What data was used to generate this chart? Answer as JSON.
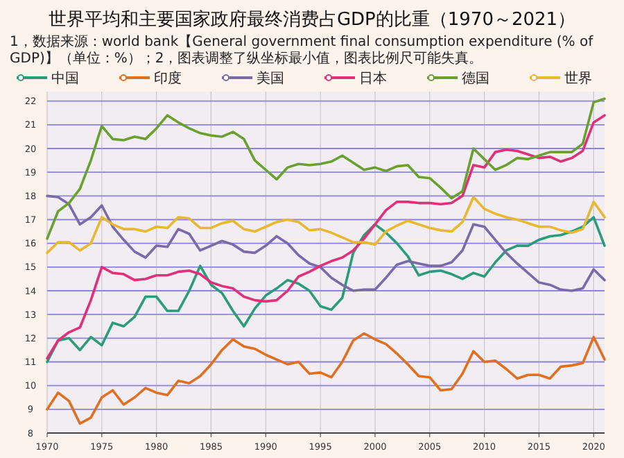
{
  "chart_data": {
    "type": "line",
    "title": "世界平均和主要国家政府最终消费占GDP的比重（1970～2021）",
    "subtitle": "1，数据来源：world bank【General government final consumption expenditure (% of GDP)】（单位：%）；2，图表调整了纵坐标最小值，图表比例尺可能失真。",
    "x": [
      1970,
      1971,
      1972,
      1973,
      1974,
      1975,
      1976,
      1977,
      1978,
      1979,
      1980,
      1981,
      1982,
      1983,
      1984,
      1985,
      1986,
      1987,
      1988,
      1989,
      1990,
      1991,
      1992,
      1993,
      1994,
      1995,
      1996,
      1997,
      1998,
      1999,
      2000,
      2001,
      2002,
      2003,
      2004,
      2005,
      2006,
      2007,
      2008,
      2009,
      2010,
      2011,
      2012,
      2013,
      2014,
      2015,
      2016,
      2017,
      2018,
      2019,
      2020,
      2021
    ],
    "series": [
      {
        "name": "中国",
        "color": "#2a9d78",
        "values": [
          11.0,
          11.9,
          12.0,
          11.5,
          12.05,
          11.7,
          12.65,
          12.5,
          12.9,
          13.75,
          13.75,
          13.15,
          13.15,
          14.0,
          15.05,
          14.25,
          13.9,
          13.15,
          12.5,
          13.25,
          13.8,
          14.1,
          14.45,
          14.3,
          14.0,
          13.35,
          13.2,
          13.7,
          15.6,
          16.35,
          16.8,
          16.45,
          16.0,
          15.45,
          14.65,
          14.8,
          14.85,
          14.7,
          14.5,
          14.75,
          14.6,
          15.2,
          15.7,
          15.9,
          15.9,
          16.15,
          16.3,
          16.35,
          16.5,
          16.7,
          17.1,
          15.9
        ]
      },
      {
        "name": "印度",
        "color": "#e07020",
        "values": [
          9.0,
          9.7,
          9.35,
          8.4,
          8.65,
          9.5,
          9.8,
          9.2,
          9.5,
          9.9,
          9.7,
          9.6,
          10.2,
          10.1,
          10.4,
          10.9,
          11.5,
          11.95,
          11.65,
          11.55,
          11.3,
          11.1,
          10.9,
          11.0,
          10.5,
          10.55,
          10.35,
          11.0,
          11.9,
          12.2,
          11.95,
          11.75,
          11.35,
          10.9,
          10.4,
          10.35,
          9.8,
          9.85,
          10.5,
          11.45,
          11.0,
          11.05,
          10.7,
          10.3,
          10.45,
          10.45,
          10.3,
          10.8,
          10.85,
          10.95,
          12.05,
          11.1
        ]
      },
      {
        "name": "美国",
        "color": "#7a6aa8",
        "values": [
          18.0,
          17.95,
          17.65,
          16.8,
          17.1,
          17.6,
          16.7,
          16.15,
          15.65,
          15.4,
          15.9,
          15.85,
          16.6,
          16.4,
          15.7,
          15.9,
          16.1,
          15.95,
          15.65,
          15.6,
          15.9,
          16.3,
          16.0,
          15.5,
          15.15,
          15.0,
          14.55,
          14.25,
          14.0,
          14.05,
          14.05,
          14.55,
          15.1,
          15.25,
          15.15,
          15.05,
          15.05,
          15.2,
          15.7,
          16.8,
          16.7,
          16.15,
          15.6,
          15.15,
          14.75,
          14.35,
          14.25,
          14.05,
          14.0,
          14.1,
          14.9,
          14.45
        ]
      },
      {
        "name": "日本",
        "color": "#e0307a",
        "values": [
          11.15,
          11.9,
          12.25,
          12.45,
          13.6,
          15.0,
          14.75,
          14.7,
          14.45,
          14.5,
          14.65,
          14.65,
          14.8,
          14.85,
          14.7,
          14.35,
          14.2,
          14.1,
          13.75,
          13.6,
          13.55,
          13.6,
          14.0,
          14.6,
          14.8,
          15.05,
          15.25,
          15.4,
          15.7,
          16.2,
          16.8,
          17.4,
          17.75,
          17.75,
          17.7,
          17.7,
          17.65,
          17.7,
          18.0,
          19.3,
          19.2,
          19.85,
          19.95,
          19.9,
          19.75,
          19.6,
          19.65,
          19.45,
          19.6,
          19.9,
          21.1,
          21.4
        ]
      },
      {
        "name": "德国",
        "color": "#6aa030",
        "values": [
          16.2,
          17.35,
          17.7,
          18.3,
          19.5,
          20.95,
          20.4,
          20.35,
          20.5,
          20.4,
          20.85,
          21.4,
          21.1,
          20.85,
          20.65,
          20.55,
          20.5,
          20.7,
          20.4,
          19.5,
          19.1,
          18.7,
          19.2,
          19.35,
          19.3,
          19.35,
          19.45,
          19.7,
          19.4,
          19.1,
          19.2,
          19.05,
          19.25,
          19.3,
          18.8,
          18.75,
          18.35,
          17.9,
          18.2,
          20.0,
          19.55,
          19.1,
          19.3,
          19.6,
          19.55,
          19.7,
          19.85,
          19.85,
          19.85,
          20.2,
          21.95,
          22.1
        ]
      },
      {
        "name": "世界",
        "color": "#e8b830",
        "values": [
          15.6,
          16.05,
          16.05,
          15.7,
          16.0,
          17.1,
          16.8,
          16.6,
          16.6,
          16.5,
          16.7,
          16.65,
          17.1,
          17.05,
          16.65,
          16.65,
          16.85,
          16.95,
          16.6,
          16.5,
          16.7,
          16.9,
          17.0,
          16.9,
          16.55,
          16.6,
          16.45,
          16.25,
          16.05,
          16.05,
          15.95,
          16.5,
          16.75,
          16.95,
          16.8,
          16.65,
          16.55,
          16.5,
          16.9,
          17.95,
          17.45,
          17.25,
          17.1,
          17.0,
          16.85,
          16.7,
          16.7,
          16.55,
          16.45,
          16.6,
          17.75,
          17.1
        ]
      }
    ],
    "xlim": [
      1970,
      2021
    ],
    "ylim": [
      8,
      22.4
    ],
    "xticks": [
      1970,
      1975,
      1980,
      1985,
      1990,
      1995,
      2000,
      2005,
      2010,
      2015,
      2020
    ],
    "yticks": [
      8,
      9,
      10,
      11,
      12,
      13,
      14,
      15,
      16,
      17,
      18,
      19,
      20,
      21,
      22
    ],
    "grid": true,
    "legend": "top"
  }
}
